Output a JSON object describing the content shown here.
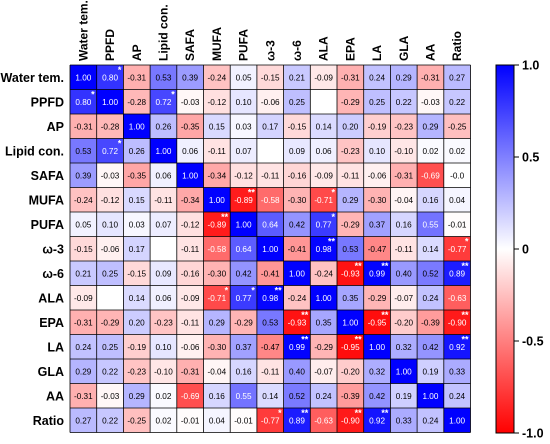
{
  "chart_data": {
    "type": "heatmap",
    "variables": [
      "Water tem.",
      "PPFD",
      "AP",
      "Lipid con.",
      "SAFA",
      "MUFA",
      "PUFA",
      "ω-3",
      "ω-6",
      "ALA",
      "EPA",
      "LA",
      "GLA",
      "AA",
      "Ratio"
    ],
    "colorbar": {
      "min": -1.0,
      "max": 1.0,
      "ticks": [
        "1.0",
        "0.5",
        "0",
        "-0.5",
        "-1.0"
      ],
      "colors": {
        "negative": "#ff0000",
        "zero": "#ffffff",
        "positive": "#0000ff"
      }
    },
    "matrix": [
      [
        "1.00",
        "0.80",
        "-0.31",
        "0.53",
        "0.39",
        "-0.24",
        "0.05",
        "-0.15",
        "0.21",
        "-0.09",
        "-0.31",
        "0.24",
        "0.29",
        "-0.31",
        "0.27"
      ],
      [
        "0.80",
        "1.00",
        "-0.28",
        "0.72",
        "-0.03",
        "-0.12",
        "0.10",
        "-0.06",
        "0.25",
        "",
        "-0.29",
        "0.25",
        "0.22",
        "-0.03",
        "0.22"
      ],
      [
        "-0.31",
        "-0.28",
        "1.00",
        "0.26",
        "-0.35",
        "0.15",
        "0.03",
        "0.17",
        "-0.15",
        "0.14",
        "0.20",
        "-0.19",
        "-0.23",
        "0.29",
        "-0.25"
      ],
      [
        "0.53",
        "0.72",
        "0.26",
        "1.00",
        "0.06",
        "-0.11",
        "0.07",
        "",
        "0.09",
        "0.06",
        "-0.23",
        "0.10",
        "-0.10",
        "0.02",
        "0.02"
      ],
      [
        "0.39",
        "-0.03",
        "-0.35",
        "0.06",
        "1.00",
        "-0.34",
        "-0.12",
        "-0.11",
        "-0.16",
        "-0.09",
        "-0.11",
        "-0.06",
        "-0.31",
        "-0.69",
        "-0.0"
      ],
      [
        "-0.24",
        "-0.12",
        "0.15",
        "-0.11",
        "-0.34",
        "1.00",
        "-0.89",
        "-0.58",
        "-0.30",
        "-0.71",
        "0.29",
        "-0.30",
        "-0.04",
        "0.16",
        "0.04"
      ],
      [
        "0.05",
        "0.10",
        "0.03",
        "0.07",
        "-0.12",
        "-0.89",
        "1.00",
        "0.64",
        "0.42",
        "0.77",
        "-0.29",
        "0.37",
        "0.16",
        "0.55",
        "-0.01"
      ],
      [
        "-0.15",
        "-0.06",
        "0.17",
        "",
        "-0.11",
        "-0.58",
        "0.64",
        "1.00",
        "-0.41",
        "0.98",
        "0.53",
        "-0.47",
        "-0.11",
        "0.14",
        "-0.77"
      ],
      [
        "0.21",
        "0.25",
        "-0.15",
        "0.09",
        "-0.16",
        "-0.30",
        "0.42",
        "-0.41",
        "1.00",
        "-0.24",
        "-0.93",
        "0.99",
        "0.40",
        "0.52",
        "0.89"
      ],
      [
        "-0.09",
        "",
        "0.14",
        "0.06",
        "-0.09",
        "-0.71",
        "0.77",
        "0.98",
        "-0.24",
        "1.00",
        "0.35",
        "-0.29",
        "-0.07",
        "0.24",
        "-0.63"
      ],
      [
        "-0.31",
        "-0.29",
        "0.20",
        "-0.23",
        "-0.11",
        "0.29",
        "-0.29",
        "0.53",
        "-0.93",
        "0.35",
        "1.00",
        "-0.95",
        "-0.20",
        "-0.39",
        "-0.90"
      ],
      [
        "0.24",
        "0.25",
        "-0.19",
        "0.10",
        "-0.06",
        "-0.30",
        "0.37",
        "-0.47",
        "0.99",
        "-0.29",
        "-0.95",
        "1.00",
        "0.32",
        "0.42",
        "0.92"
      ],
      [
        "0.29",
        "0.22",
        "-0.23",
        "-0.10",
        "-0.31",
        "-0.04",
        "0.16",
        "-0.11",
        "0.40",
        "-0.07",
        "-0.20",
        "0.32",
        "1.00",
        "0.19",
        "0.33"
      ],
      [
        "-0.31",
        "-0.03",
        "0.29",
        "0.02",
        "-0.69",
        "0.16",
        "0.55",
        "0.14",
        "0.52",
        "0.24",
        "-0.39",
        "0.42",
        "0.19",
        "1.00",
        "0.24"
      ],
      [
        "0.27",
        "0.22",
        "-0.25",
        "0.02",
        "-0.01",
        "0.04",
        "-0.01",
        "-0.77",
        "0.89",
        "-0.63",
        "-0.90",
        "0.92",
        "0.33",
        "0.24",
        "1.00"
      ]
    ],
    "significance": [
      {
        "row": 0,
        "col": 1,
        "mark": "*"
      },
      {
        "row": 1,
        "col": 0,
        "mark": "*"
      },
      {
        "row": 1,
        "col": 3,
        "mark": "*"
      },
      {
        "row": 3,
        "col": 1,
        "mark": "*"
      },
      {
        "row": 5,
        "col": 6,
        "mark": "**"
      },
      {
        "row": 5,
        "col": 9,
        "mark": "*"
      },
      {
        "row": 6,
        "col": 5,
        "mark": "**"
      },
      {
        "row": 6,
        "col": 9,
        "mark": "*"
      },
      {
        "row": 7,
        "col": 9,
        "mark": "**"
      },
      {
        "row": 7,
        "col": 14,
        "mark": "*"
      },
      {
        "row": 8,
        "col": 10,
        "mark": "**"
      },
      {
        "row": 8,
        "col": 11,
        "mark": "**"
      },
      {
        "row": 8,
        "col": 14,
        "mark": "**"
      },
      {
        "row": 9,
        "col": 5,
        "mark": "*"
      },
      {
        "row": 9,
        "col": 6,
        "mark": "*"
      },
      {
        "row": 9,
        "col": 7,
        "mark": "**"
      },
      {
        "row": 10,
        "col": 8,
        "mark": "**"
      },
      {
        "row": 10,
        "col": 11,
        "mark": "**"
      },
      {
        "row": 10,
        "col": 14,
        "mark": "**"
      },
      {
        "row": 11,
        "col": 8,
        "mark": "**"
      },
      {
        "row": 11,
        "col": 10,
        "mark": "**"
      },
      {
        "row": 11,
        "col": 14,
        "mark": "**"
      },
      {
        "row": 14,
        "col": 7,
        "mark": "*"
      },
      {
        "row": 14,
        "col": 8,
        "mark": "**"
      },
      {
        "row": 14,
        "col": 10,
        "mark": "**"
      },
      {
        "row": 14,
        "col": 11,
        "mark": "**"
      }
    ]
  }
}
